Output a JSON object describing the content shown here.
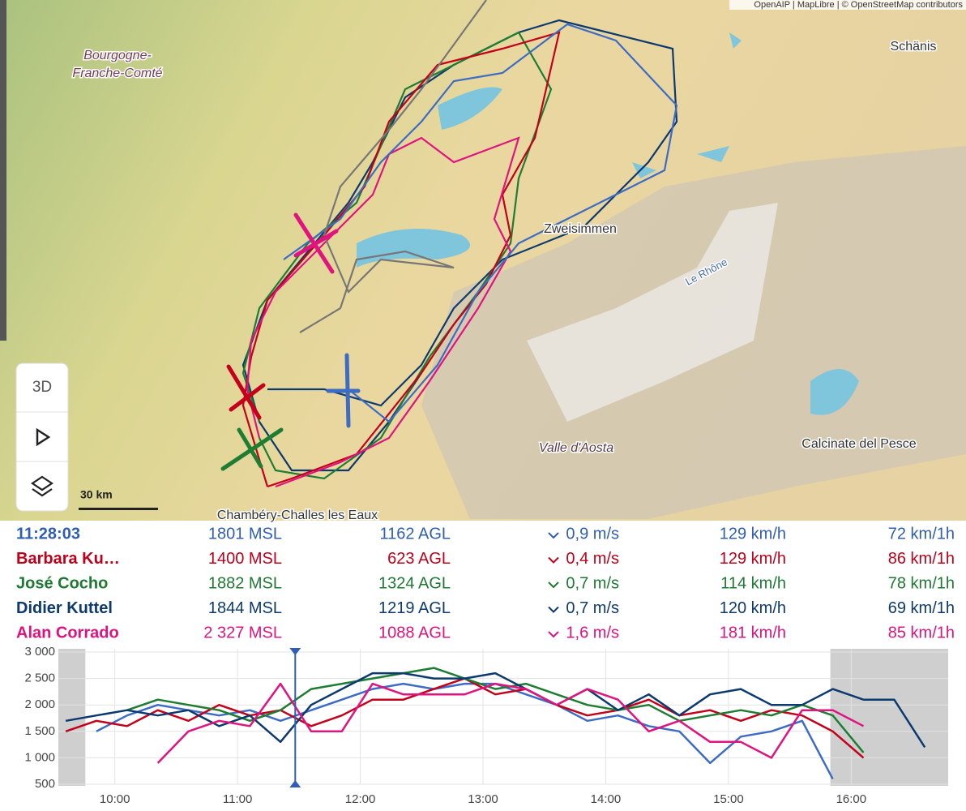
{
  "map": {
    "attribution": "OpenAIP | MapLibre | © OpenStreetMap contributors",
    "labels": [
      "Bourgogne-",
      "Franche-Comté",
      "Schänis",
      "Zweisimmen",
      "Le Rhône",
      "Valle d'Aosta",
      "Calcinate del Pesce",
      "Chambéry-Challes les Eaux"
    ],
    "scale": "30 km",
    "controls": {
      "mode": "3D"
    }
  },
  "table": {
    "row_colors": [
      "#2f5eb5",
      "#c0001a",
      "#1e7a32",
      "#0d3a6e",
      "#df137d"
    ],
    "rows": [
      [
        "11:28:03",
        "1801 MSL",
        "1162 AGL",
        "0,9 m/s",
        "129 km/h",
        "72 km/1h"
      ],
      [
        "Barbara Ku…",
        "1400 MSL",
        "623 AGL",
        "0,4 m/s",
        "129 km/h",
        "86 km/1h"
      ],
      [
        "José Cocho",
        "1882 MSL",
        "1324 AGL",
        "0,7 m/s",
        "114 km/h",
        "78 km/1h"
      ],
      [
        "Didier Kuttel",
        "1844 MSL",
        "1219 AGL",
        "0,7 m/s",
        "120 km/h",
        "69 km/1h"
      ],
      [
        "Alan Corrado",
        "2 327 MSL",
        "1088 AGL",
        "1,6 m/s",
        "181 km/h",
        "85 km/1h"
      ]
    ]
  },
  "chart_data": {
    "type": "line",
    "x": [
      9.6,
      9.85,
      10.1,
      10.35,
      10.6,
      10.85,
      11.1,
      11.35,
      11.6,
      11.85,
      12.1,
      12.35,
      12.6,
      12.85,
      13.1,
      13.35,
      13.6,
      13.85,
      14.1,
      14.35,
      14.6,
      14.85,
      15.1,
      15.35,
      15.6,
      15.85,
      16.1,
      16.35,
      16.6
    ],
    "series": [
      {
        "color": "#3d6cc4",
        "values": [
          null,
          1500,
          1800,
          2000,
          1900,
          1800,
          1900,
          1700,
          1900,
          2100,
          2300,
          2400,
          2300,
          2400,
          2400,
          2200,
          2000,
          1700,
          1800,
          1600,
          1500,
          900,
          1400,
          1500,
          1700,
          600,
          null,
          null,
          null
        ]
      },
      {
        "color": "#c4001a",
        "values": [
          1500,
          1700,
          1600,
          1900,
          1700,
          2000,
          1800,
          1900,
          1600,
          1800,
          2100,
          2100,
          2300,
          2500,
          2200,
          2300,
          2000,
          1800,
          1900,
          2100,
          1800,
          1900,
          1700,
          1900,
          1800,
          1500,
          1000,
          null,
          null
        ]
      },
      {
        "color": "#1e7d32",
        "values": [
          null,
          null,
          1900,
          2100,
          2000,
          1900,
          1700,
          1900,
          2300,
          2400,
          2500,
          2600,
          2700,
          2500,
          2300,
          2400,
          2200,
          2000,
          1900,
          2000,
          1700,
          1800,
          1900,
          1800,
          2000,
          1800,
          1100,
          null,
          null
        ]
      },
      {
        "color": "#0d3a6e",
        "values": [
          1700,
          1800,
          1900,
          1800,
          1900,
          1600,
          1800,
          1300,
          2000,
          2300,
          2600,
          2600,
          2500,
          2500,
          2600,
          2300,
          2000,
          2300,
          1900,
          2200,
          1800,
          2200,
          2300,
          2000,
          2000,
          2300,
          2100,
          2100,
          1200
        ]
      },
      {
        "color": "#e0137f",
        "values": [
          null,
          null,
          null,
          900,
          1500,
          1700,
          1600,
          2400,
          1500,
          1500,
          2400,
          2200,
          2200,
          2200,
          2400,
          2300,
          2000,
          2300,
          2100,
          1500,
          1700,
          1300,
          1300,
          1000,
          1900,
          1900,
          1600,
          null,
          null
        ]
      }
    ],
    "xlim": [
      9.54,
      16.79
    ],
    "ylim": [
      500,
      3000
    ],
    "xticks": [
      {
        "value": 10,
        "label": "10:00"
      },
      {
        "value": 11,
        "label": "11:00"
      },
      {
        "value": 12,
        "label": "12:00"
      },
      {
        "value": 13,
        "label": "13:00"
      },
      {
        "value": 14,
        "label": "14:00"
      },
      {
        "value": 15,
        "label": "15:00"
      },
      {
        "value": 16,
        "label": "16:00"
      }
    ],
    "yticks": [
      500,
      {
        "value": 1000,
        "label": "1 000"
      },
      {
        "value": 1500,
        "label": "1 500"
      },
      {
        "value": 2000,
        "label": "2 000"
      },
      {
        "value": 2500,
        "label": "2 500"
      },
      {
        "value": 3000,
        "label": "3 000"
      }
    ],
    "shaded_ranges": [
      [
        9.54,
        9.76
      ],
      [
        15.83,
        16.79
      ]
    ],
    "cursor": 11.47,
    "grid": true
  }
}
